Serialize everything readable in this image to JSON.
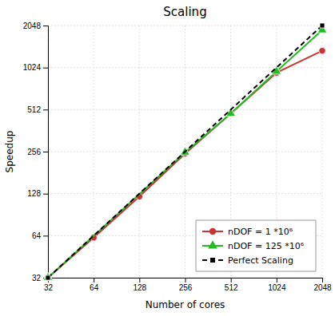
{
  "chart_data": {
    "type": "line",
    "title": "Scaling",
    "x_label": "Number of cores",
    "y_label": "Speedup",
    "log": true,
    "grid": true,
    "legend": "lower right",
    "xlim": [
      32,
      2048
    ],
    "ylim": [
      32,
      2048
    ],
    "xticks": [
      32,
      64,
      128,
      256,
      512,
      1024,
      2048
    ],
    "yticks": [
      32,
      64,
      128,
      256,
      512,
      1024,
      2048
    ],
    "series": [
      {
        "name": "nDOF = 1 *10⁶",
        "color": "#cc3333",
        "marker": "circle",
        "line_style": "solid",
        "x": [
          32,
          64,
          128,
          256,
          512,
          1024,
          2048
        ],
        "values": [
          32,
          62,
          122,
          248,
          480,
          940,
          1350
        ]
      },
      {
        "name": "nDOF = 125 *10⁶",
        "color": "#22bb22",
        "marker": "triangle",
        "line_style": "solid",
        "x": [
          32,
          256,
          512,
          1024,
          2048
        ],
        "values": [
          32,
          253,
          480,
          960,
          1900
        ]
      },
      {
        "name": "Perfect Scaling",
        "color": "#000000",
        "marker": "square",
        "line_style": "dashed",
        "x": [
          32,
          2048
        ],
        "values": [
          32,
          2048
        ]
      }
    ]
  }
}
